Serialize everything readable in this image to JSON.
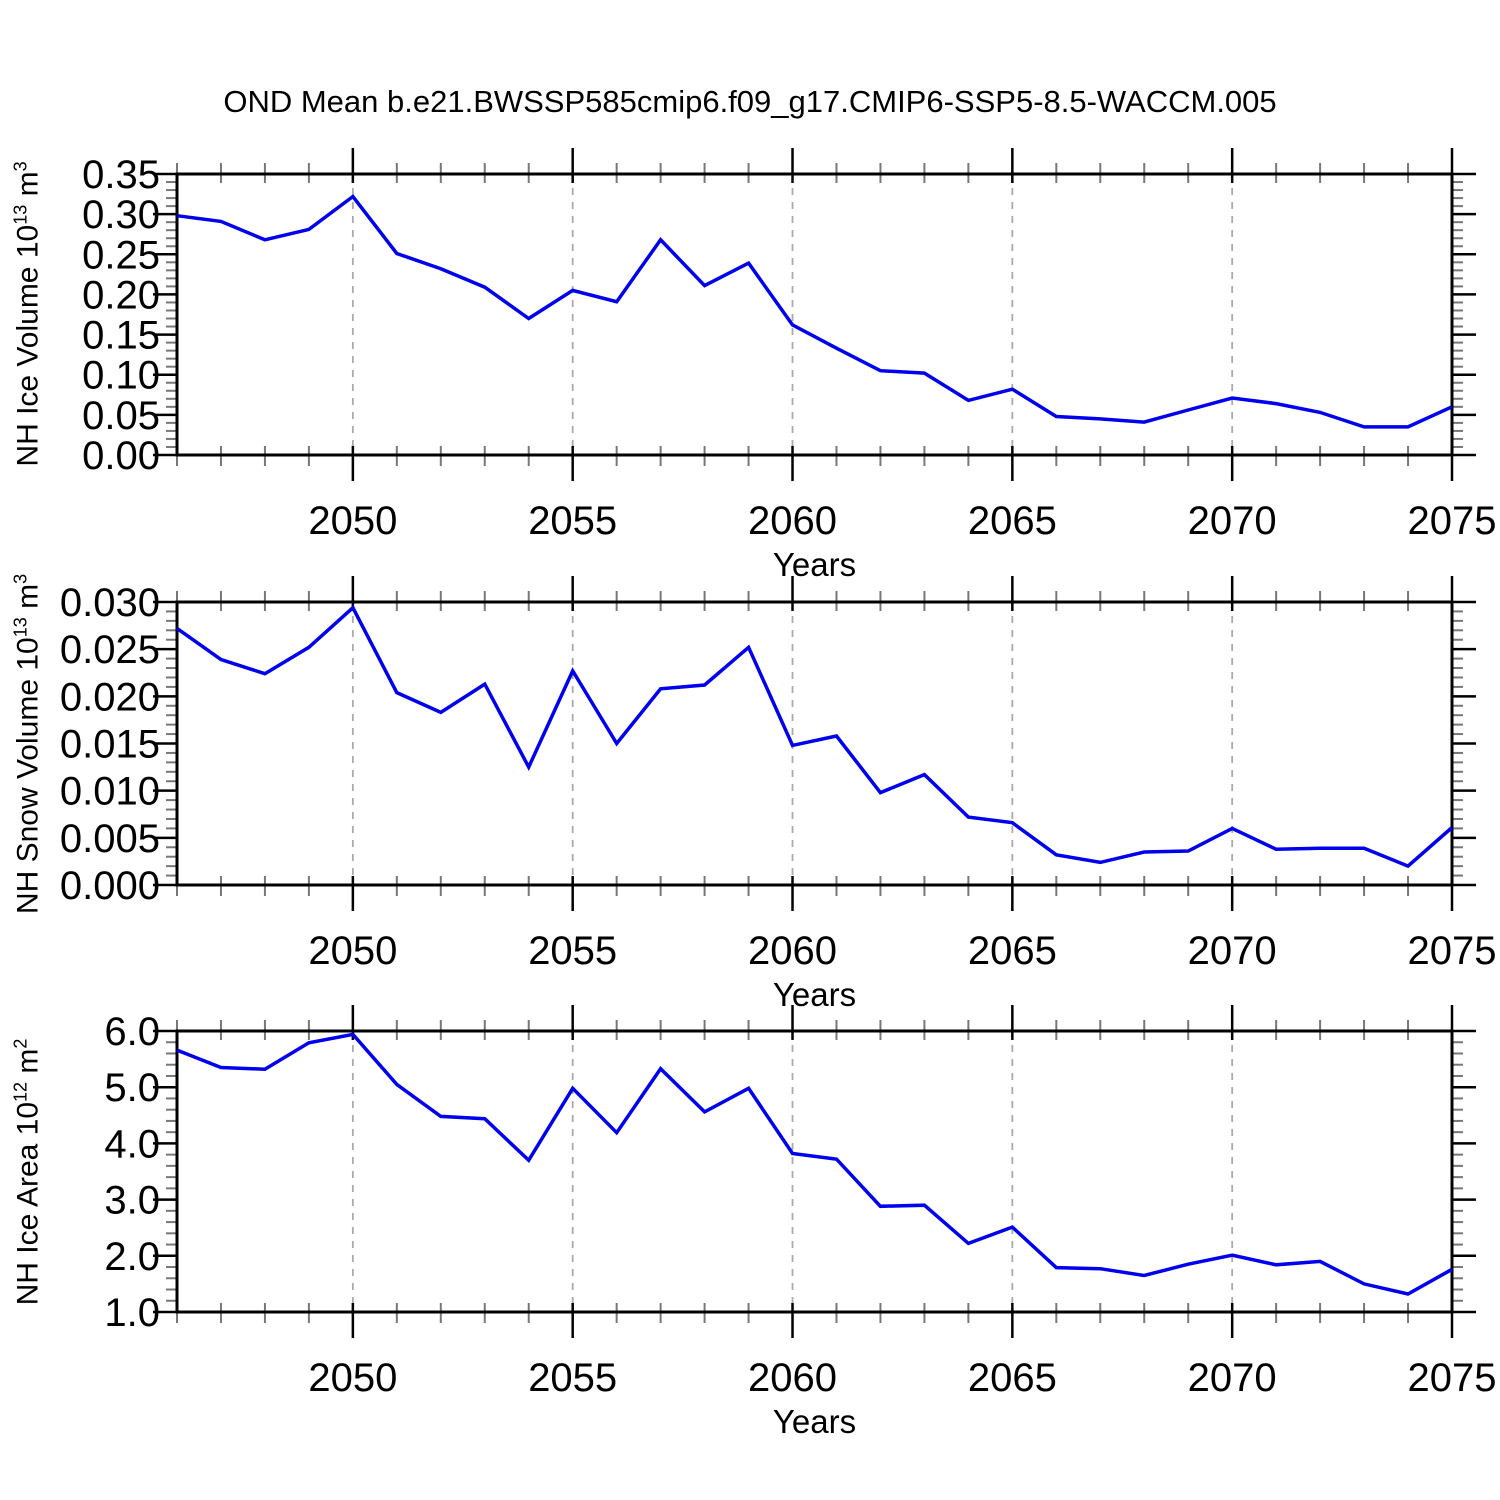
{
  "title": "OND Mean b.e21.BWSSP585cmip6.f09_g17.CMIP6-SSP5-8.5-WACCM.005",
  "style": {
    "line_color": "#0000ee",
    "grid_color": "#aaaaaa",
    "axis_color": "#000000",
    "minor_tick_color": "#777777"
  },
  "chart_data": [
    {
      "type": "line",
      "name": "nh-ice-volume",
      "ylabel": {
        "prefix": "NH Ice Volume 10",
        "exponent": "13",
        "unit": " m",
        "unit_exponent": "3"
      },
      "xlabel": "Years",
      "xlim": [
        2046,
        2075
      ],
      "ylim": [
        0,
        0.35
      ],
      "yminor_step": 0.01,
      "ytick_values": [
        0.0,
        0.05,
        0.1,
        0.15,
        0.2,
        0.25,
        0.3,
        0.35
      ],
      "ytick_labels": [
        "0.00",
        "0.05",
        "0.10",
        "0.15",
        "0.20",
        "0.25",
        "0.30",
        "0.35"
      ],
      "xtick_values": [
        2050,
        2055,
        2060,
        2065,
        2070,
        2075
      ],
      "xtick_labels": [
        "2050",
        "2055",
        "2060",
        "2065",
        "2070",
        "2075"
      ],
      "grid_years": [
        2050,
        2055,
        2060,
        2065,
        2070
      ],
      "x": [
        2046,
        2047,
        2048,
        2049,
        2050,
        2051,
        2052,
        2053,
        2054,
        2055,
        2056,
        2057,
        2058,
        2059,
        2060,
        2061,
        2062,
        2063,
        2064,
        2065,
        2066,
        2067,
        2068,
        2069,
        2070,
        2071,
        2072,
        2073,
        2074,
        2075
      ],
      "values": [
        0.298,
        0.291,
        0.268,
        0.281,
        0.322,
        0.251,
        0.232,
        0.209,
        0.17,
        0.205,
        0.191,
        0.268,
        0.211,
        0.239,
        0.162,
        0.133,
        0.105,
        0.102,
        0.068,
        0.082,
        0.048,
        0.045,
        0.041,
        0.056,
        0.071,
        0.064,
        0.053,
        0.035,
        0.035,
        0.06
      ]
    },
    {
      "type": "line",
      "name": "nh-snow-volume",
      "ylabel": {
        "prefix": "NH Snow Volume 10",
        "exponent": "13",
        "unit": " m",
        "unit_exponent": "3"
      },
      "xlabel": "Years",
      "xlim": [
        2046,
        2075
      ],
      "ylim": [
        0,
        0.03
      ],
      "yminor_step": 0.001,
      "ytick_values": [
        0.0,
        0.005,
        0.01,
        0.015,
        0.02,
        0.025,
        0.03
      ],
      "ytick_labels": [
        "0.000",
        "0.005",
        "0.010",
        "0.015",
        "0.020",
        "0.025",
        "0.030"
      ],
      "xtick_values": [
        2050,
        2055,
        2060,
        2065,
        2070,
        2075
      ],
      "xtick_labels": [
        "2050",
        "2055",
        "2060",
        "2065",
        "2070",
        "2075"
      ],
      "grid_years": [
        2050,
        2055,
        2060,
        2065,
        2070
      ],
      "x": [
        2046,
        2047,
        2048,
        2049,
        2050,
        2051,
        2052,
        2053,
        2054,
        2055,
        2056,
        2057,
        2058,
        2059,
        2060,
        2061,
        2062,
        2063,
        2064,
        2065,
        2066,
        2067,
        2068,
        2069,
        2070,
        2071,
        2072,
        2073,
        2074,
        2075
      ],
      "values": [
        0.0272,
        0.0239,
        0.0224,
        0.0252,
        0.0294,
        0.0204,
        0.0183,
        0.0213,
        0.0125,
        0.0227,
        0.015,
        0.0208,
        0.0212,
        0.0252,
        0.0148,
        0.0158,
        0.0098,
        0.0117,
        0.0072,
        0.0066,
        0.0032,
        0.0024,
        0.0035,
        0.0036,
        0.006,
        0.0038,
        0.0039,
        0.0039,
        0.002,
        0.0061
      ]
    },
    {
      "type": "line",
      "name": "nh-ice-area",
      "ylabel": {
        "prefix": "NH Ice Area 10",
        "exponent": "12",
        "unit": " m",
        "unit_exponent": "2"
      },
      "xlabel": "Years",
      "xlim": [
        2046,
        2075
      ],
      "ylim": [
        1.0,
        6.0
      ],
      "yminor_step": 0.2,
      "ytick_values": [
        1.0,
        2.0,
        3.0,
        4.0,
        5.0,
        6.0
      ],
      "ytick_labels": [
        "1.0",
        "2.0",
        "3.0",
        "4.0",
        "5.0",
        "6.0"
      ],
      "xtick_values": [
        2050,
        2055,
        2060,
        2065,
        2070,
        2075
      ],
      "xtick_labels": [
        "2050",
        "2055",
        "2060",
        "2065",
        "2070",
        "2075"
      ],
      "grid_years": [
        2050,
        2055,
        2060,
        2065,
        2070
      ],
      "x": [
        2046,
        2047,
        2048,
        2049,
        2050,
        2051,
        2052,
        2053,
        2054,
        2055,
        2056,
        2057,
        2058,
        2059,
        2060,
        2061,
        2062,
        2063,
        2064,
        2065,
        2066,
        2067,
        2068,
        2069,
        2070,
        2071,
        2072,
        2073,
        2074,
        2075
      ],
      "values": [
        5.66,
        5.35,
        5.32,
        5.79,
        5.94,
        5.05,
        4.48,
        4.44,
        3.7,
        4.98,
        4.19,
        5.33,
        4.56,
        4.98,
        3.82,
        3.72,
        2.88,
        2.9,
        2.22,
        2.51,
        1.79,
        1.77,
        1.65,
        1.85,
        2.01,
        1.84,
        1.9,
        1.5,
        1.32,
        1.76
      ]
    }
  ]
}
